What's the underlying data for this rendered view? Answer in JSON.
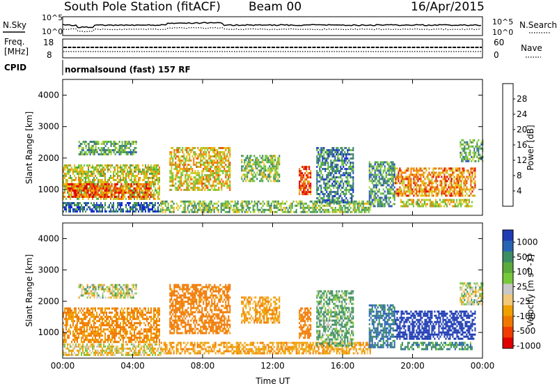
{
  "header": {
    "station": "South Pole Station (fitACF)",
    "beam": "Beam 00",
    "date": "16/Apr/2015"
  },
  "top_panels": {
    "nsky_label": "N.Sky",
    "nsearch_label": "N.Search",
    "noise_ticks_left": [
      "10^5",
      "10^0"
    ],
    "noise_ticks_right": [
      "10^5",
      "10^0"
    ],
    "freq_label_1": "Freq.",
    "freq_label_2": "[MHz]",
    "freq_ticks": [
      "18",
      "8"
    ],
    "nave_label": "Nave",
    "nave_ticks": [
      "60",
      "0"
    ],
    "cpid_label": "CPID",
    "cpid_text": "normalsound (fast) 157 RF"
  },
  "colors": {
    "power": [
      "#1428d2",
      "#2a56b8",
      "#3a7a70",
      "#48a04a",
      "#6cc23a",
      "#b8d232",
      "#f2b400",
      "#f07c00",
      "#e84a00",
      "#e00000"
    ],
    "velocity": [
      "#1e3cb4",
      "#2864b4",
      "#3c8c64",
      "#5aaa3c",
      "#78c83c",
      "#c8c8c8",
      "#f0c878",
      "#f0a000",
      "#f07800",
      "#f03c00",
      "#e00000"
    ]
  },
  "chart_data": [
    {
      "type": "heatmap",
      "name": "power",
      "xlabel": "",
      "ylabel": "Slant Range [km]",
      "xlim": [
        0,
        24
      ],
      "ylim": [
        180,
        4500
      ],
      "y_ticks": [
        "1000",
        "2000",
        "3000",
        "4000"
      ],
      "colorbar": {
        "label": "Power [dB]",
        "range": [
          0,
          32
        ],
        "ticks": [
          "4",
          "8",
          "12",
          "16",
          "20",
          "24",
          "28"
        ]
      },
      "echo_regions": [
        {
          "t0": 0.0,
          "t1": 5.6,
          "r0": 300,
          "r1": 600,
          "value": 6
        },
        {
          "t0": 0.0,
          "t1": 5.5,
          "r0": 700,
          "r1": 1800,
          "value": 18
        },
        {
          "t0": 0.3,
          "t1": 5.0,
          "r0": 750,
          "r1": 1200,
          "value": 27
        },
        {
          "t0": 0.9,
          "t1": 4.2,
          "r0": 2150,
          "r1": 2550,
          "value": 12
        },
        {
          "t0": 6.1,
          "t1": 9.6,
          "r0": 1000,
          "r1": 2350,
          "value": 20
        },
        {
          "t0": 10.2,
          "t1": 12.4,
          "r0": 1300,
          "r1": 2100,
          "value": 14
        },
        {
          "t0": 5.6,
          "t1": 17.6,
          "r0": 300,
          "r1": 650,
          "value": 14
        },
        {
          "t0": 13.5,
          "t1": 14.2,
          "r0": 850,
          "r1": 1750,
          "value": 27
        },
        {
          "t0": 14.5,
          "t1": 16.6,
          "r0": 600,
          "r1": 2350,
          "value": 8
        },
        {
          "t0": 17.5,
          "t1": 19.0,
          "r0": 500,
          "r1": 1900,
          "value": 10
        },
        {
          "t0": 19.0,
          "t1": 23.6,
          "r0": 800,
          "r1": 1700,
          "value": 24
        },
        {
          "t0": 19.3,
          "t1": 23.4,
          "r0": 450,
          "r1": 700,
          "value": 18
        },
        {
          "t0": 22.7,
          "t1": 24.0,
          "r0": 1900,
          "r1": 2600,
          "value": 12
        }
      ]
    },
    {
      "type": "heatmap",
      "name": "velocity",
      "xlabel": "Time UT",
      "ylabel": "Slant Range [km]",
      "xlim": [
        0,
        24
      ],
      "ylim": [
        180,
        4500
      ],
      "x_ticks": [
        "00:00",
        "04:00",
        "08:00",
        "12:00",
        "16:00",
        "20:00",
        "00:00"
      ],
      "y_ticks": [
        "1000",
        "2000",
        "3000",
        "4000"
      ],
      "colorbar": {
        "label": "Velocity [m s^-1]",
        "ticks": [
          "1000",
          "500",
          "100",
          "25",
          "-25",
          "-100",
          "-500",
          "-1000"
        ]
      },
      "echo_regions": [
        {
          "t0": 0.0,
          "t1": 5.6,
          "r0": 300,
          "r1": 650,
          "value": -60
        },
        {
          "t0": 0.0,
          "t1": 5.5,
          "r0": 700,
          "r1": 1800,
          "value": -300
        },
        {
          "t0": 0.9,
          "t1": 4.2,
          "r0": 2100,
          "r1": 2550,
          "value": 0
        },
        {
          "t0": 6.1,
          "t1": 9.6,
          "r0": 1000,
          "r1": 2550,
          "value": -400
        },
        {
          "t0": 10.2,
          "t1": 12.4,
          "r0": 1300,
          "r1": 2150,
          "value": -200
        },
        {
          "t0": 5.6,
          "t1": 17.6,
          "r0": 300,
          "r1": 700,
          "value": -200
        },
        {
          "t0": 13.5,
          "t1": 14.2,
          "r0": 850,
          "r1": 1800,
          "value": -400
        },
        {
          "t0": 14.5,
          "t1": 16.6,
          "r0": 600,
          "r1": 2350,
          "value": 120
        },
        {
          "t0": 17.5,
          "t1": 19.0,
          "r0": 500,
          "r1": 1900,
          "value": 300
        },
        {
          "t0": 19.0,
          "t1": 23.6,
          "r0": 800,
          "r1": 1700,
          "value": 800
        },
        {
          "t0": 19.3,
          "t1": 23.4,
          "r0": 450,
          "r1": 700,
          "value": 200
        },
        {
          "t0": 22.7,
          "t1": 24.0,
          "r0": 1900,
          "r1": 2600,
          "value": 0
        }
      ]
    }
  ]
}
